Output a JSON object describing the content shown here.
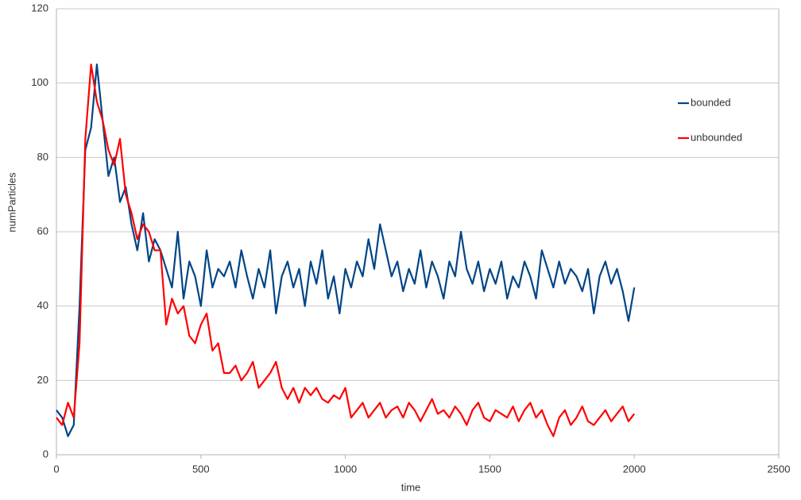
{
  "chart_data": {
    "type": "line",
    "x_label": "time",
    "y_label": "numParticles",
    "x": [
      0,
      20,
      40,
      60,
      80,
      100,
      120,
      140,
      160,
      180,
      200,
      220,
      240,
      260,
      280,
      300,
      320,
      340,
      360,
      380,
      400,
      420,
      440,
      460,
      480,
      500,
      520,
      540,
      560,
      580,
      600,
      620,
      640,
      660,
      680,
      700,
      720,
      740,
      760,
      780,
      800,
      820,
      840,
      860,
      880,
      900,
      920,
      940,
      960,
      980,
      1000,
      1020,
      1040,
      1060,
      1080,
      1100,
      1120,
      1140,
      1160,
      1180,
      1200,
      1220,
      1240,
      1260,
      1280,
      1300,
      1320,
      1340,
      1360,
      1380,
      1400,
      1420,
      1440,
      1460,
      1480,
      1500,
      1520,
      1540,
      1560,
      1580,
      1600,
      1620,
      1640,
      1660,
      1680,
      1700,
      1720,
      1740,
      1760,
      1780,
      1800,
      1820,
      1840,
      1860,
      1880,
      1900,
      1920,
      1940,
      1960,
      1980,
      2000
    ],
    "series": [
      {
        "name": "bounded",
        "color": "#004586",
        "values": [
          12,
          10,
          5,
          8,
          40,
          82,
          88,
          105,
          90,
          75,
          80,
          68,
          72,
          62,
          55,
          65,
          52,
          58,
          55,
          50,
          45,
          60,
          42,
          52,
          48,
          40,
          55,
          45,
          50,
          48,
          52,
          45,
          55,
          48,
          42,
          50,
          45,
          55,
          38,
          48,
          52,
          45,
          50,
          40,
          52,
          46,
          55,
          42,
          48,
          38,
          50,
          45,
          52,
          48,
          58,
          50,
          62,
          55,
          48,
          52,
          44,
          50,
          46,
          55,
          45,
          52,
          48,
          42,
          52,
          48,
          60,
          50,
          46,
          52,
          44,
          50,
          46,
          52,
          42,
          48,
          45,
          52,
          48,
          42,
          55,
          50,
          45,
          52,
          46,
          50,
          48,
          44,
          50,
          38,
          48,
          52,
          46,
          50,
          44,
          36,
          45
        ]
      },
      {
        "name": "unbounded",
        "color": "#ff0000",
        "values": [
          10,
          8,
          14,
          10,
          30,
          85,
          105,
          95,
          90,
          82,
          78,
          85,
          70,
          65,
          58,
          62,
          60,
          55,
          55,
          35,
          42,
          38,
          40,
          32,
          30,
          35,
          38,
          28,
          30,
          22,
          22,
          24,
          20,
          22,
          25,
          18,
          20,
          22,
          25,
          18,
          15,
          18,
          14,
          18,
          16,
          18,
          15,
          14,
          16,
          15,
          18,
          10,
          12,
          14,
          10,
          12,
          14,
          10,
          12,
          13,
          10,
          14,
          12,
          9,
          12,
          15,
          11,
          12,
          10,
          13,
          11,
          8,
          12,
          14,
          10,
          9,
          12,
          11,
          10,
          13,
          9,
          12,
          14,
          10,
          12,
          8,
          5,
          10,
          12,
          8,
          10,
          13,
          9,
          8,
          10,
          12,
          9,
          11,
          13,
          9,
          11
        ]
      }
    ],
    "xlim": [
      0,
      2500
    ],
    "xticks": [
      0,
      500,
      1000,
      1500,
      2000,
      2500
    ],
    "ylim": [
      0,
      120
    ],
    "yticks": [
      0,
      20,
      40,
      60,
      80,
      100,
      120
    ],
    "grid": true,
    "legend": "right"
  }
}
